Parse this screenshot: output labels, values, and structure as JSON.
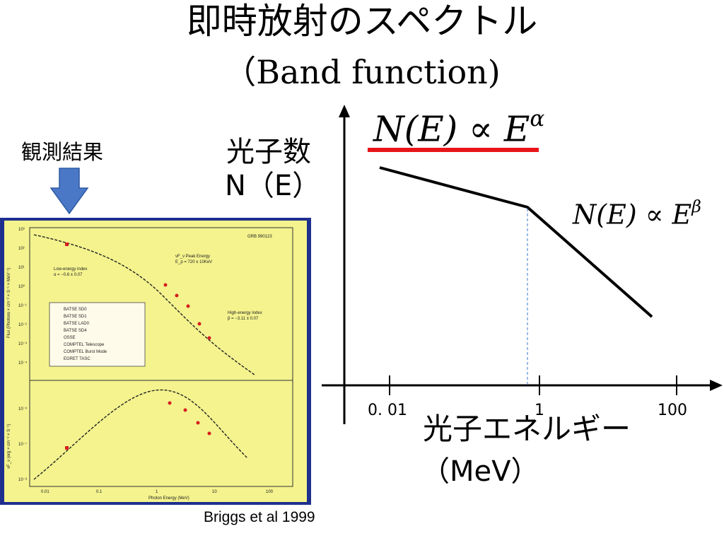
{
  "title": {
    "line1": "即時放射のスペクトル",
    "line2": "（Band function)"
  },
  "observation_label": "観測結果",
  "observation_figure": {
    "plot_label": "GRB 990123",
    "peak_text": "νF_ν Peak Energy",
    "peak_value": "E_p = 720 ± 10KeV",
    "low_index_text": "Low-energy index",
    "low_index_value": "α = −0.6 ± 0.07",
    "high_index_text": "High-energy index",
    "high_index_value": "β = −3.11 ± 0.07",
    "legend": [
      "BATSE SD0",
      "BATSE SD1",
      "BATSE LAD0",
      "BATSE SD4",
      "OSSE",
      "COMPTEL Telescope",
      "COMPTEL Burst Mode",
      "EGRET TASC"
    ],
    "top_ylabel": "Flux (Photons × cm⁻² × S⁻¹ × MeV⁻¹)",
    "bottom_ylabel": "νF_ν (erg × cm⁻² × S⁻¹)",
    "xlabel": "Photon Energy (MeV)",
    "x_ticks": [
      "0.01",
      "0.1",
      "1",
      "10",
      "100"
    ],
    "top_y_ticks": [
      "10³",
      "10²",
      "10¹",
      "10⁰",
      "10⁻¹",
      "10⁻²",
      "10⁻³",
      "10⁻⁴"
    ],
    "bottom_y_ticks": [
      "10⁻⁶",
      "10⁻⁷",
      "10⁻⁸"
    ]
  },
  "citation": "Briggs et al 1999",
  "diagram": {
    "ylabel_line1": "光子数",
    "ylabel_line2": "N（E）",
    "xlabel_line1": "光子エネルギー",
    "xlabel_line2": "（MeV）",
    "x_ticks": [
      "0. 01",
      "1",
      "100"
    ],
    "formula_low": {
      "base": "N(E)",
      "op": "∝",
      "power_base": "E",
      "exponent": "α"
    },
    "formula_high": {
      "base": "N(E)",
      "op": "∝",
      "power_base": "E",
      "exponent": "β"
    }
  },
  "colors": {
    "figure_background": "#f4f38e",
    "figure_frame": "#1e2f8e",
    "arrow_fill": "#4a78c6",
    "underline": "#e8141a",
    "break_line": "#5b8fd6"
  }
}
